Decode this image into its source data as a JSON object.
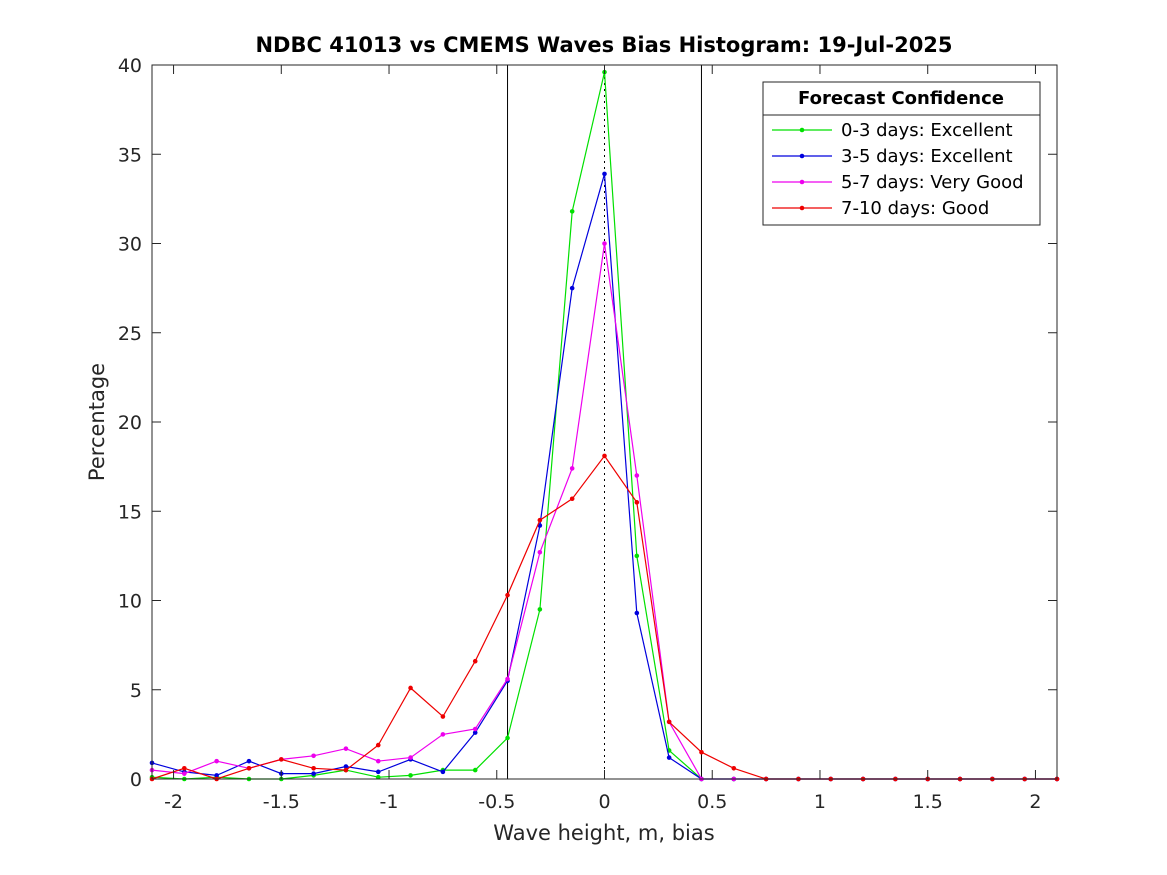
{
  "chart_data": {
    "type": "line",
    "title": "NDBC 41013 vs CMEMS Waves Bias Histogram: 19-Jul-2025",
    "xlabel": "Wave height, m, bias",
    "ylabel": "Percentage",
    "xlim": [
      -2.1,
      2.1
    ],
    "ylim": [
      0,
      40
    ],
    "xticks": [
      -2,
      -1.5,
      -1,
      -0.5,
      0,
      0.5,
      1,
      1.5,
      2
    ],
    "xtick_labels": [
      "-2",
      "-1.5",
      "-1",
      "-0.5",
      "0",
      "0.5",
      "1",
      "1.5",
      "2"
    ],
    "yticks": [
      0,
      5,
      10,
      15,
      20,
      25,
      30,
      35,
      40
    ],
    "ytick_labels": [
      "0",
      "5",
      "10",
      "15",
      "20",
      "25",
      "30",
      "35",
      "40"
    ],
    "grid": false,
    "vertical_lines": [
      {
        "x": -0.45,
        "style": "solid",
        "color": "#000000"
      },
      {
        "x": 0,
        "style": "dotted",
        "color": "#000000"
      },
      {
        "x": 0.45,
        "style": "solid",
        "color": "#000000"
      }
    ],
    "legend": {
      "title": "Forecast Confidence",
      "placement": "top-right"
    },
    "x": [
      -2.1,
      -1.95,
      -1.8,
      -1.65,
      -1.5,
      -1.35,
      -1.2,
      -1.05,
      -0.9,
      -0.75,
      -0.6,
      -0.45,
      -0.3,
      -0.15,
      0,
      0.15,
      0.3,
      0.45,
      0.6,
      0.75,
      0.9,
      1.05,
      1.2,
      1.35,
      1.5,
      1.65,
      1.8,
      1.95,
      2.1
    ],
    "series": [
      {
        "name": "0-3 days: Excellent",
        "color": "#00e000",
        "values": [
          0.1,
          0,
          0.1,
          0,
          0,
          0.2,
          0.5,
          0.1,
          0.2,
          0.5,
          0.5,
          2.3,
          9.5,
          31.8,
          39.6,
          12.5,
          1.6,
          0,
          0,
          0,
          0,
          0,
          0,
          0,
          0,
          0,
          0,
          0,
          0
        ]
      },
      {
        "name": "3-5 days: Excellent",
        "color": "#0000dd",
        "values": [
          0.9,
          0.4,
          0.2,
          1.0,
          0.3,
          0.3,
          0.7,
          0.4,
          1.1,
          0.4,
          2.6,
          5.5,
          14.2,
          27.5,
          33.9,
          9.3,
          1.2,
          0,
          0,
          0,
          0,
          0,
          0,
          0,
          0,
          0,
          0,
          0,
          0
        ]
      },
      {
        "name": "5-7 days: Very Good",
        "color": "#ee00ee",
        "values": [
          0.5,
          0.3,
          1.0,
          0.6,
          1.1,
          1.3,
          1.7,
          1.0,
          1.2,
          2.5,
          2.8,
          5.6,
          12.7,
          17.4,
          30.0,
          17.0,
          3.2,
          0,
          0,
          0,
          0,
          0,
          0,
          0,
          0,
          0,
          0,
          0,
          0
        ]
      },
      {
        "name": "7-10 days: Good",
        "color": "#ee0000",
        "values": [
          0,
          0.6,
          0,
          0.6,
          1.1,
          0.6,
          0.5,
          1.9,
          5.1,
          3.5,
          6.6,
          10.3,
          14.5,
          15.7,
          18.1,
          15.5,
          3.2,
          1.5,
          0.6,
          0,
          0,
          0,
          0,
          0,
          0,
          0,
          0,
          0,
          0
        ]
      }
    ]
  }
}
